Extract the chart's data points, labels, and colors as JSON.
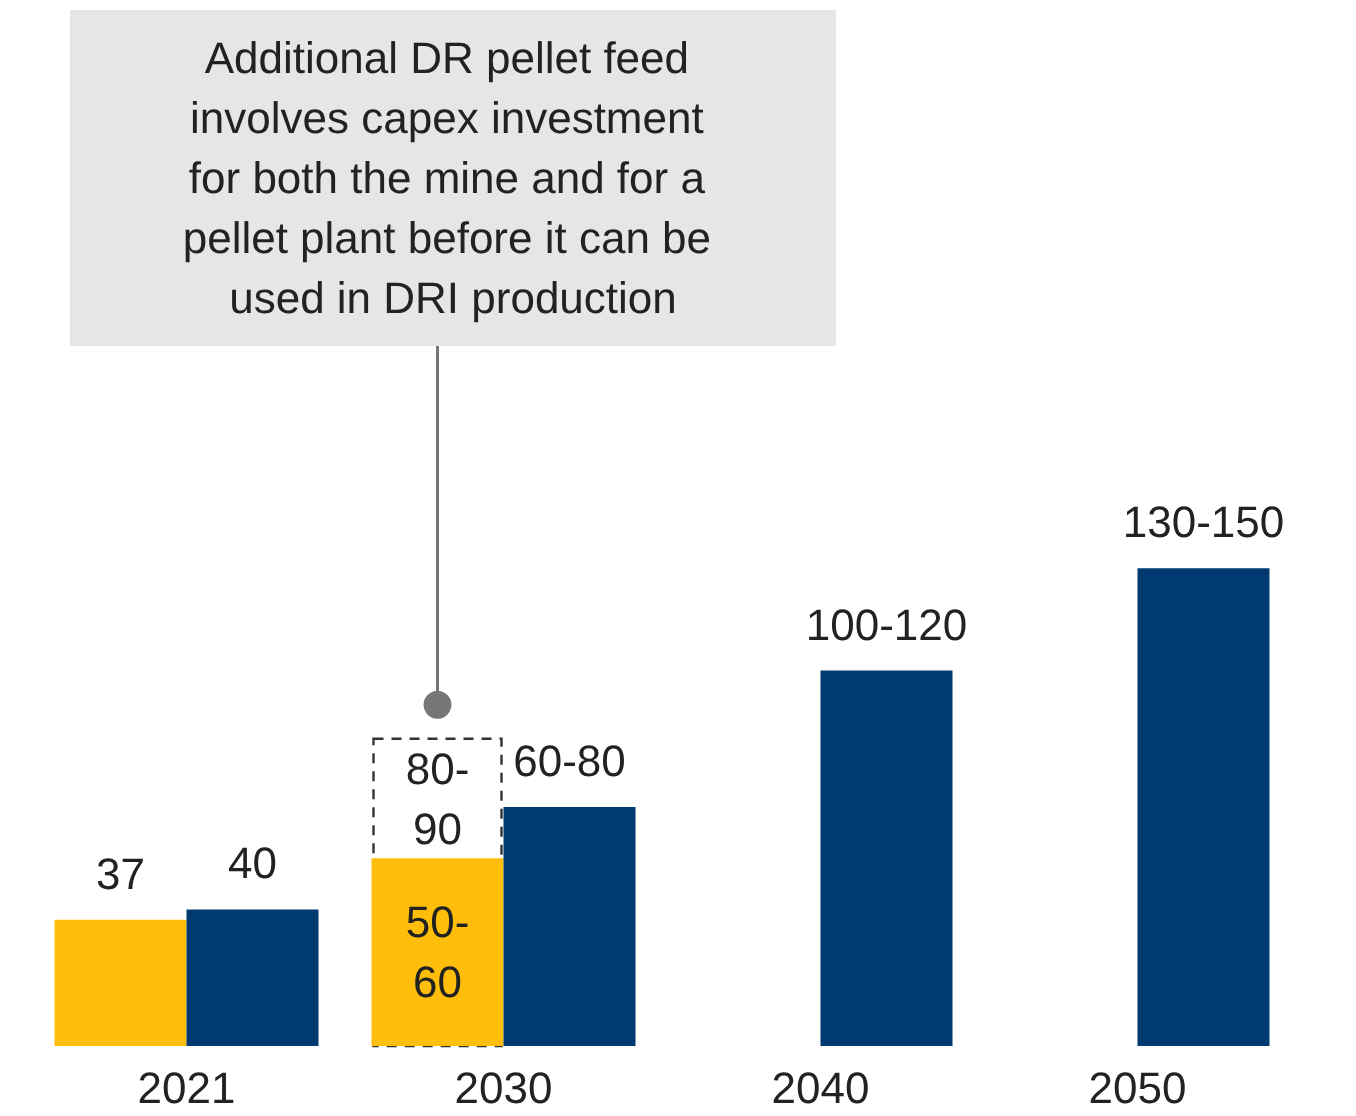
{
  "chart_data": {
    "type": "bar",
    "categories": [
      "2021",
      "2030",
      "2040",
      "2050"
    ],
    "series": [
      {
        "color": "#ffbe0b",
        "values": [
          37,
          55,
          null,
          null
        ],
        "value_labels": [
          "37",
          "50-60",
          null,
          null
        ]
      },
      {
        "color": "#ffffff",
        "line_style": "dashed",
        "values": [
          null,
          90,
          null,
          null
        ],
        "value_labels": [
          null,
          "80-90",
          null,
          null
        ]
      },
      {
        "color": "#003a70",
        "values": [
          40,
          70,
          110,
          140
        ],
        "value_labels": [
          "40",
          "60-80",
          "100-120",
          "130-150"
        ]
      }
    ],
    "annotations": [
      "Additional DR pellet feed involves capex investment for both the mine and for a pellet plant before it can be used in DRI production"
    ]
  }
}
